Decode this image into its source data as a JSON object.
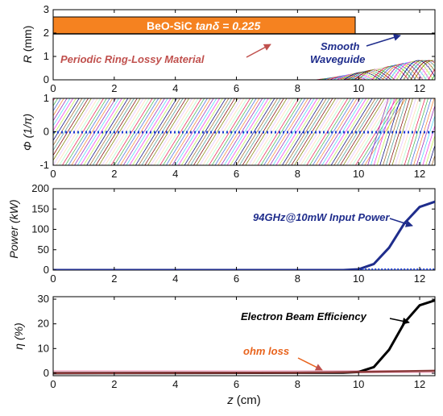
{
  "colors": {
    "orange": "#F58220",
    "orange_text": "#C0504D",
    "navy": "#1F2D8C",
    "blue_dotted": "#1F3FD0",
    "black": "#000000",
    "pink_band": "#F7C6D9",
    "brown": "#8B3A3A"
  },
  "xaxis": {
    "label_prefix": "z",
    "label_suffix": "(cm)",
    "ticks": [
      "0",
      "2",
      "4",
      "6",
      "8",
      "10",
      "12"
    ],
    "range": [
      0,
      12.5
    ]
  },
  "chart_data": [
    {
      "type": "line",
      "ylabel_symbol": "R",
      "ylabel_unit": "(mm)",
      "yticks": [
        "0",
        "1",
        "2",
        "3"
      ],
      "ylim": [
        0,
        3
      ],
      "bar_label_left": "BeO-SiC ",
      "bar_label_tan": "tan",
      "bar_label_delta": "δ",
      "bar_label_right": " = 0.225",
      "annotations": [
        "Periodic Ring-Lossy Material",
        "Smooth",
        "Waveguide"
      ],
      "profile": {
        "x": [
          0,
          9.9,
          9.9,
          12.5
        ],
        "y": [
          2.0,
          2.0,
          2.0,
          2.0
        ]
      },
      "lossy_bar": {
        "x": [
          0,
          9.9
        ],
        "y": [
          2.0,
          2.75
        ]
      }
    },
    {
      "type": "line",
      "ylabel_symbol": "Φ",
      "ylabel_unit": "(1/π)",
      "yticks": [
        "-1",
        "0",
        "1"
      ],
      "ylim": [
        -1,
        1
      ],
      "dotted_line_y": 0
    },
    {
      "type": "line",
      "ylabel": "Power (kW)",
      "yticks": [
        "0",
        "50",
        "100",
        "150",
        "200"
      ],
      "ylim": [
        0,
        200
      ],
      "annotation": "94GHz@10mW Input Power",
      "series": [
        {
          "x": [
            0,
            9.5,
            10.0,
            10.5,
            11.0,
            11.5,
            12.0,
            12.5
          ],
          "values": [
            0,
            0,
            2,
            15,
            55,
            115,
            155,
            168
          ]
        }
      ]
    },
    {
      "type": "line",
      "ylabel": "η (%)",
      "yticks": [
        "0",
        "10",
        "20",
        "30"
      ],
      "ylim": [
        -1,
        31
      ],
      "annotations": [
        "Electron Beam Efficiency",
        "ohm loss"
      ],
      "series": [
        {
          "x": [
            0,
            9.5,
            10.0,
            10.5,
            11.0,
            11.5,
            12.0,
            12.5
          ],
          "values": [
            0,
            0.2,
            0.5,
            2.5,
            9.5,
            20.5,
            27.5,
            29.5
          ]
        },
        {
          "x": [
            0,
            8.0,
            10.0,
            12.5
          ],
          "values": [
            0,
            0.2,
            0.5,
            1.0
          ]
        }
      ]
    }
  ]
}
